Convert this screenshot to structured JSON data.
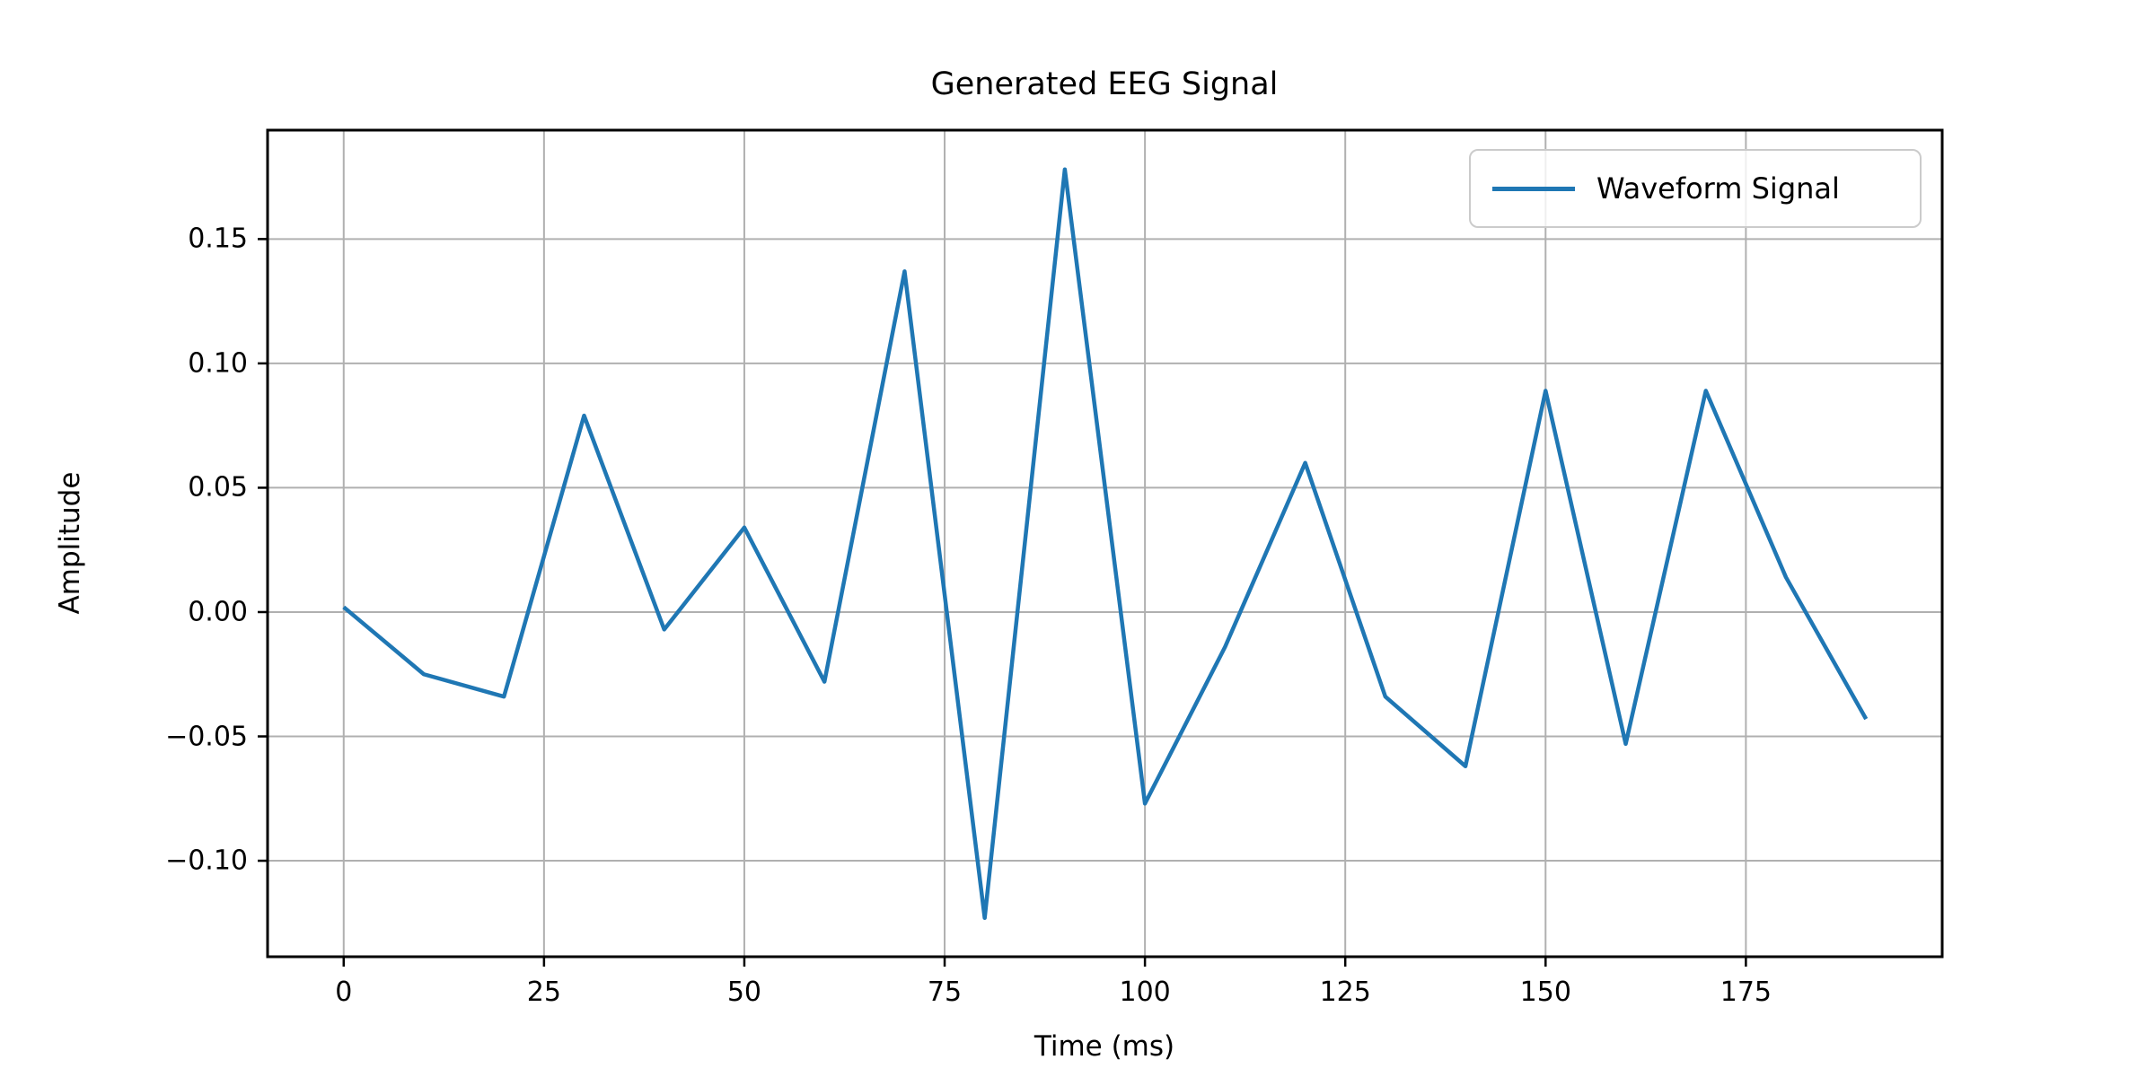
{
  "page": {
    "background": "#ffffff"
  },
  "chart_data": {
    "type": "line",
    "title": "Generated EEG Signal",
    "xlabel": "Time (ms)",
    "ylabel": "Amplitude",
    "grid": true,
    "grid_color": "#b0b0b0",
    "axis_color": "#000000",
    "text_color": "#000000",
    "xlim": [
      -9.5,
      199.5
    ],
    "ylim": [
      -0.1386,
      0.1938
    ],
    "x_ticks": [
      0,
      25,
      50,
      75,
      100,
      125,
      150,
      175
    ],
    "x_tick_labels": [
      "0",
      "25",
      "50",
      "75",
      "100",
      "125",
      "150",
      "175"
    ],
    "y_ticks": [
      -0.1,
      -0.05,
      0.0,
      0.05,
      0.1,
      0.15
    ],
    "y_tick_labels": [
      "−0.10",
      "−0.05",
      "0.00",
      "0.05",
      "0.10",
      "0.15"
    ],
    "legend": {
      "position": "upper right",
      "entries": [
        {
          "label": "Waveform Signal",
          "color": "#1f77b4"
        }
      ]
    },
    "series": [
      {
        "name": "Waveform Signal",
        "color": "#1f77b4",
        "x": [
          0,
          10,
          20,
          30,
          40,
          50,
          60,
          70,
          80,
          90,
          100,
          110,
          120,
          130,
          140,
          150,
          160,
          170,
          180,
          190
        ],
        "y": [
          0.002,
          -0.025,
          -0.034,
          0.079,
          -0.007,
          0.034,
          -0.028,
          0.137,
          -0.123,
          0.178,
          -0.077,
          -0.014,
          0.06,
          -0.034,
          -0.062,
          0.089,
          -0.053,
          0.089,
          0.014,
          -0.043
        ]
      }
    ]
  }
}
